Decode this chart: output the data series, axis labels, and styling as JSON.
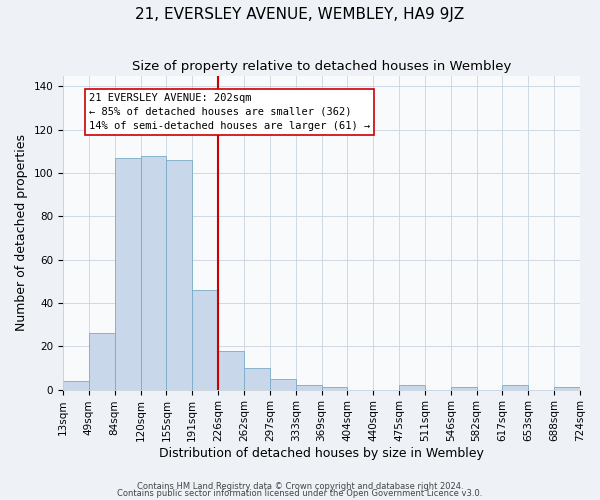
{
  "title": "21, EVERSLEY AVENUE, WEMBLEY, HA9 9JZ",
  "subtitle": "Size of property relative to detached houses in Wembley",
  "xlabel": "Distribution of detached houses by size in Wembley",
  "ylabel": "Number of detached properties",
  "bar_values": [
    4,
    26,
    107,
    108,
    106,
    46,
    18,
    10,
    5,
    2,
    1,
    0,
    0,
    2,
    0,
    1,
    0,
    2,
    0,
    1
  ],
  "bin_labels": [
    "13sqm",
    "49sqm",
    "84sqm",
    "120sqm",
    "155sqm",
    "191sqm",
    "226sqm",
    "262sqm",
    "297sqm",
    "333sqm",
    "369sqm",
    "404sqm",
    "440sqm",
    "475sqm",
    "511sqm",
    "546sqm",
    "582sqm",
    "617sqm",
    "653sqm",
    "688sqm",
    "724sqm"
  ],
  "bar_color": "#c8d8ea",
  "bar_edge_color": "#7aaac8",
  "vline_x_bin": 5.5,
  "vline_color": "#cc0000",
  "annotation_text": "21 EVERSLEY AVENUE: 202sqm\n← 85% of detached houses are smaller (362)\n14% of semi-detached houses are larger (61) →",
  "annotation_box_color": "#ffffff",
  "annotation_box_edge": "#cc0000",
  "ylim": [
    0,
    145
  ],
  "yticks": [
    0,
    20,
    40,
    60,
    80,
    100,
    120,
    140
  ],
  "footer1": "Contains HM Land Registry data © Crown copyright and database right 2024.",
  "footer2": "Contains public sector information licensed under the Open Government Licence v3.0.",
  "bg_color": "#eef2f7",
  "plot_bg_color": "#f8fafc",
  "grid_color": "#c8d4e0",
  "title_fontsize": 11,
  "subtitle_fontsize": 9.5,
  "tick_fontsize": 7.5,
  "axis_label_fontsize": 9,
  "footer_fontsize": 6.0
}
